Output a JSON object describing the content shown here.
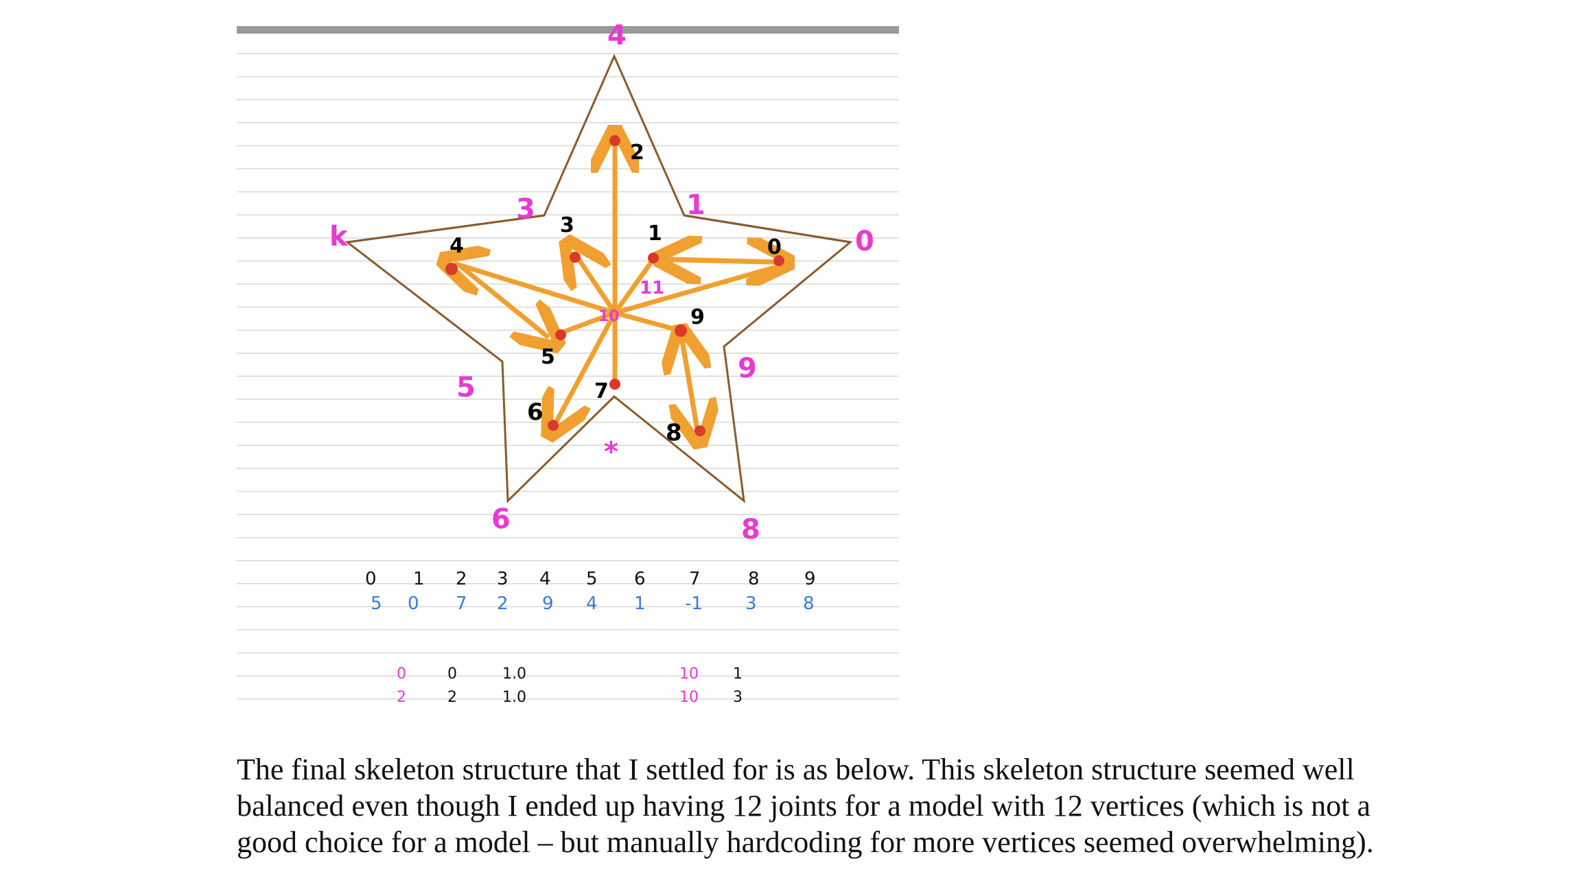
{
  "figure": {
    "joint_labels": [
      {
        "id": "0",
        "text": "0"
      },
      {
        "id": "1",
        "text": "1"
      },
      {
        "id": "2",
        "text": "2"
      },
      {
        "id": "3",
        "text": "3"
      },
      {
        "id": "4",
        "text": "4"
      },
      {
        "id": "5",
        "text": "5"
      },
      {
        "id": "6",
        "text": "6"
      },
      {
        "id": "7",
        "text": "7"
      },
      {
        "id": "8",
        "text": "8"
      },
      {
        "id": "9",
        "text": "9"
      },
      {
        "id": "10",
        "text": "10"
      },
      {
        "id": "11",
        "text": "11"
      }
    ],
    "vertex_labels": [
      {
        "id": "v-top",
        "text": "4"
      },
      {
        "id": "v-left",
        "text": "k"
      },
      {
        "id": "v-right",
        "text": "0"
      },
      {
        "id": "v-upper-left",
        "text": "3"
      },
      {
        "id": "v-upper-right",
        "text": "1"
      },
      {
        "id": "v-lower-left",
        "text": "5"
      },
      {
        "id": "v-lower-right",
        "text": "9"
      },
      {
        "id": "v-bottom",
        "text": "*"
      },
      {
        "id": "v-bottom-left",
        "text": "6"
      },
      {
        "id": "v-bottom-right",
        "text": "8"
      }
    ],
    "table_row1": [
      "0",
      "1",
      "2",
      "3",
      "4",
      "5",
      "6",
      "7",
      "8",
      "9"
    ],
    "table_row2": [
      "5",
      "0",
      "7",
      "2",
      "9",
      "4",
      "1",
      "-1",
      "3",
      "8"
    ],
    "lower_rows": [
      [
        "0",
        "0",
        "1.0",
        "10",
        "1"
      ],
      [
        "2",
        "2",
        "1.0",
        "10",
        "3"
      ]
    ],
    "colors": {
      "star_outline": "#8b5a2b",
      "bone": "#f0a030",
      "joint": "#d93a2a",
      "vertex_label": "#e83ad0",
      "table_blue": "#3b7bd8",
      "ruled_line": "#d7d7d7",
      "top_bar": "#999999"
    }
  },
  "paragraph": "The final skeleton structure that I settled for is as below. This skeleton structure seemed well balanced even though I ended up having 12 joints for a model with 12 vertices (which is not a good choice for a model – but manually hardcoding for more vertices seemed overwhelming)."
}
